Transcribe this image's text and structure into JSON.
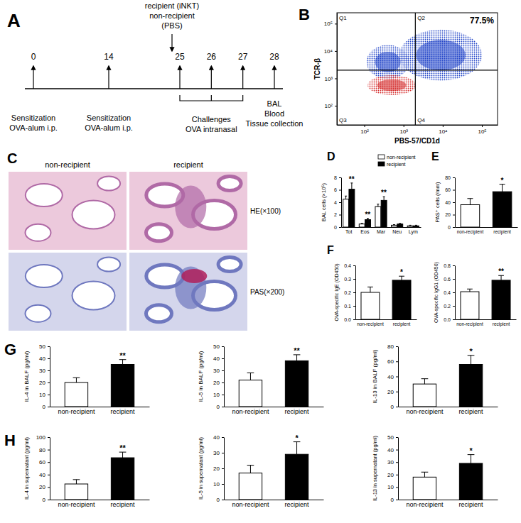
{
  "panel_labels": [
    "A",
    "B",
    "C",
    "D",
    "E",
    "F",
    "G",
    "H"
  ],
  "timeline": {
    "days": [
      0,
      14,
      25,
      26,
      27,
      28
    ],
    "treatment": [
      "recipient (iNKT)",
      "non-recipient",
      "(PBS)"
    ],
    "events": [
      {
        "day": 0,
        "lines": [
          "Sensitization",
          "OVA-alum i.p."
        ]
      },
      {
        "day": 14,
        "lines": [
          "Sensitization",
          "OVA-alum i.p."
        ]
      },
      {
        "day_from": 25,
        "day_to": 27,
        "lines": [
          "Challenges",
          "OVA intranasal"
        ]
      },
      {
        "day": 28,
        "lines": [
          "BAL",
          "Blood",
          "Tissue collection"
        ]
      }
    ]
  },
  "flow_cytometry": {
    "type": "scatter",
    "xlabel": "PBS-57/CD1d",
    "ylabel": "TCR-β",
    "log": true,
    "xlim": [
      20,
      250000
    ],
    "ylim": [
      20,
      250000
    ],
    "xticks": [
      {
        "value": 100,
        "label": "10²"
      },
      {
        "value": 1000,
        "label": "10³"
      },
      {
        "value": 10000,
        "label": "10⁴"
      },
      {
        "value": 100000,
        "label": "10⁵"
      }
    ],
    "yticks": [
      {
        "value": 100,
        "label": "10²"
      },
      {
        "value": 1000,
        "label": "10³"
      },
      {
        "value": 10000,
        "label": "10⁴"
      },
      {
        "value": 100000,
        "label": "10⁵"
      }
    ],
    "gate": {
      "x": 2000,
      "y": 2000
    },
    "quadrants": [
      "Q1",
      "Q2",
      "Q3",
      "Q4"
    ],
    "annotation": "77.5%"
  },
  "histology": {
    "columns": [
      "non-recipient",
      "recipient"
    ],
    "rows": [
      "HE(×100)",
      "PAS(×200)"
    ]
  },
  "chart_data": [
    {
      "type": "bar",
      "ylabel": "BAL cells (×10⁵)",
      "categories": [
        "Tot",
        "Eos",
        "Mar",
        "Neu",
        "Lym"
      ],
      "series": [
        {
          "name": "non-recipient",
          "color": "#ffffff",
          "values": [
            4.5,
            0.5,
            3.3,
            0.3,
            0.2
          ],
          "errors": [
            0.5,
            0.1,
            0.4,
            0.1,
            0.1
          ]
        },
        {
          "name": "recipient",
          "color": "#000000",
          "values": [
            6.1,
            1.2,
            4.3,
            0.5,
            0.2
          ],
          "errors": [
            1.0,
            0.2,
            0.6,
            0.1,
            0.1
          ]
        }
      ],
      "ylim": [
        0,
        8
      ],
      "yticks": [
        0,
        2,
        4,
        6,
        8
      ],
      "legend": "upper right",
      "annotations": [
        {
          "category": "Tot",
          "text": "**"
        },
        {
          "category": "Eos",
          "text": "**"
        },
        {
          "category": "Mar",
          "text": "**"
        }
      ]
    },
    {
      "type": "bar",
      "ylabel": "PAS⁺ cells (/mm)",
      "categories": [
        "non-recipient",
        "recipient"
      ],
      "values": [
        36,
        57
      ],
      "errors": [
        10,
        12
      ],
      "colors": [
        "#ffffff",
        "#000000"
      ],
      "ylim": [
        0,
        80
      ],
      "yticks": [
        0,
        20,
        40,
        60,
        80
      ],
      "annotations": [
        {
          "category": "recipient",
          "text": "*"
        }
      ]
    },
    {
      "type": "bar",
      "ylabel": "OVA-specific IgE (OD450)",
      "categories": [
        "non-recipient",
        "recipient"
      ],
      "values": [
        0.2,
        0.29
      ],
      "errors": [
        0.04,
        0.03
      ],
      "colors": [
        "#ffffff",
        "#000000"
      ],
      "ylim": [
        0,
        0.4
      ],
      "yticks": [
        {
          "value": 0,
          "label": "0.0"
        },
        0.1,
        0.2,
        0.3,
        0.4
      ],
      "annotations": [
        {
          "category": "recipient",
          "text": "*"
        }
      ]
    },
    {
      "type": "bar",
      "ylabel": "OVA-specific IgG1 (OD450)",
      "categories": [
        "non-recipient",
        "recipient"
      ],
      "values": [
        0.41,
        0.58
      ],
      "errors": [
        0.04,
        0.07
      ],
      "colors": [
        "#ffffff",
        "#000000"
      ],
      "ylim": [
        0,
        0.8
      ],
      "yticks": [
        {
          "value": 0,
          "label": "0.0"
        },
        0.2,
        0.4,
        0.6,
        0.8
      ],
      "annotations": [
        {
          "category": "recipient",
          "text": "**"
        }
      ]
    },
    {
      "type": "bar",
      "ylabel": "IL-4 in BALF (pg/ml)",
      "categories": [
        "non-recipient",
        "recipient"
      ],
      "values": [
        20,
        35
      ],
      "errors": [
        4,
        4
      ],
      "colors": [
        "#ffffff",
        "#000000"
      ],
      "ylim": [
        0,
        50
      ],
      "yticks": [
        0,
        10,
        20,
        30,
        40,
        50
      ],
      "annotations": [
        {
          "category": "recipient",
          "text": "**"
        }
      ]
    },
    {
      "type": "bar",
      "ylabel": "IL-5 in BALF (pg/ml)",
      "categories": [
        "non-recipient",
        "recipient"
      ],
      "values": [
        22,
        38
      ],
      "errors": [
        6,
        5
      ],
      "colors": [
        "#ffffff",
        "#000000"
      ],
      "ylim": [
        0,
        50
      ],
      "yticks": [
        0,
        10,
        20,
        30,
        40,
        50
      ],
      "annotations": [
        {
          "category": "recipient",
          "text": "**"
        }
      ]
    },
    {
      "type": "bar",
      "ylabel": "IL-13 in BALF (pg/ml)",
      "categories": [
        "non-recipient",
        "recipient"
      ],
      "values": [
        30,
        56
      ],
      "errors": [
        7,
        12
      ],
      "colors": [
        "#ffffff",
        "#000000"
      ],
      "ylim": [
        0,
        80
      ],
      "yticks": [
        0,
        20,
        40,
        60,
        80
      ],
      "annotations": [
        {
          "category": "recipient",
          "text": "*"
        }
      ]
    },
    {
      "type": "bar",
      "ylabel": "IL-4 in supernatant (pg/ml)",
      "categories": [
        "non-recipient",
        "recipient"
      ],
      "values": [
        25,
        67
      ],
      "errors": [
        7,
        9
      ],
      "colors": [
        "#ffffff",
        "#000000"
      ],
      "ylim": [
        0,
        100
      ],
      "yticks": [
        0,
        20,
        40,
        60,
        80,
        100
      ],
      "annotations": [
        {
          "category": "recipient",
          "text": "**"
        }
      ]
    },
    {
      "type": "bar",
      "ylabel": "IL-5 in supernatant (pg/ml)",
      "categories": [
        "non-recipient",
        "recipient"
      ],
      "values": [
        17,
        29
      ],
      "errors": [
        5,
        8
      ],
      "colors": [
        "#ffffff",
        "#000000"
      ],
      "ylim": [
        0,
        40
      ],
      "yticks": [
        0,
        10,
        20,
        30,
        40
      ],
      "annotations": [
        {
          "category": "recipient",
          "text": "*"
        }
      ]
    },
    {
      "type": "bar",
      "ylabel": "IL-13 in supernatant (pg/ml)",
      "categories": [
        "non-recipient",
        "recipient"
      ],
      "values": [
        18,
        29
      ],
      "errors": [
        4,
        7
      ],
      "colors": [
        "#ffffff",
        "#000000"
      ],
      "ylim": [
        0,
        50
      ],
      "yticks": [
        0,
        10,
        20,
        30,
        40,
        50
      ],
      "annotations": [
        {
          "category": "recipient",
          "text": "*"
        }
      ]
    }
  ]
}
